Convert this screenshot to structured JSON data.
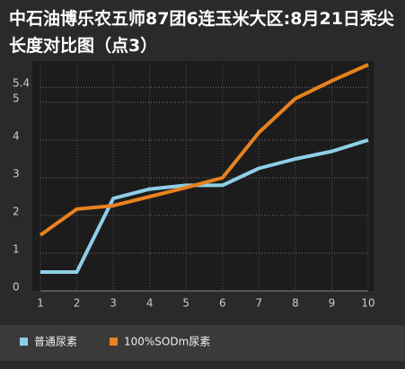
{
  "chart_data": {
    "type": "line",
    "title": "中石油博乐农五师87团6连玉米大区:8月21日秃尖长度对比图（点3）",
    "x": [
      1,
      2,
      3,
      4,
      5,
      6,
      7,
      8,
      9,
      10
    ],
    "xlim": [
      1,
      10
    ],
    "xticks": [
      1,
      2,
      3,
      4,
      5,
      6,
      7,
      8,
      9,
      10
    ],
    "ylim": [
      0,
      6
    ],
    "yticks": [
      0,
      1,
      2,
      3,
      4,
      5,
      5.4
    ],
    "grid": true,
    "legend": "bottom",
    "series": [
      {
        "name": "普通尿素",
        "color": "#8ecfe8",
        "values": [
          0.5,
          0.5,
          2.45,
          2.7,
          2.8,
          2.8,
          3.25,
          3.5,
          3.7,
          4.0
        ]
      },
      {
        "name": "100%SODm尿素",
        "color": "#e8821e",
        "values": [
          1.48,
          2.17,
          2.26,
          2.5,
          2.74,
          3.0,
          4.2,
          5.1,
          5.57,
          6.0
        ]
      }
    ]
  }
}
